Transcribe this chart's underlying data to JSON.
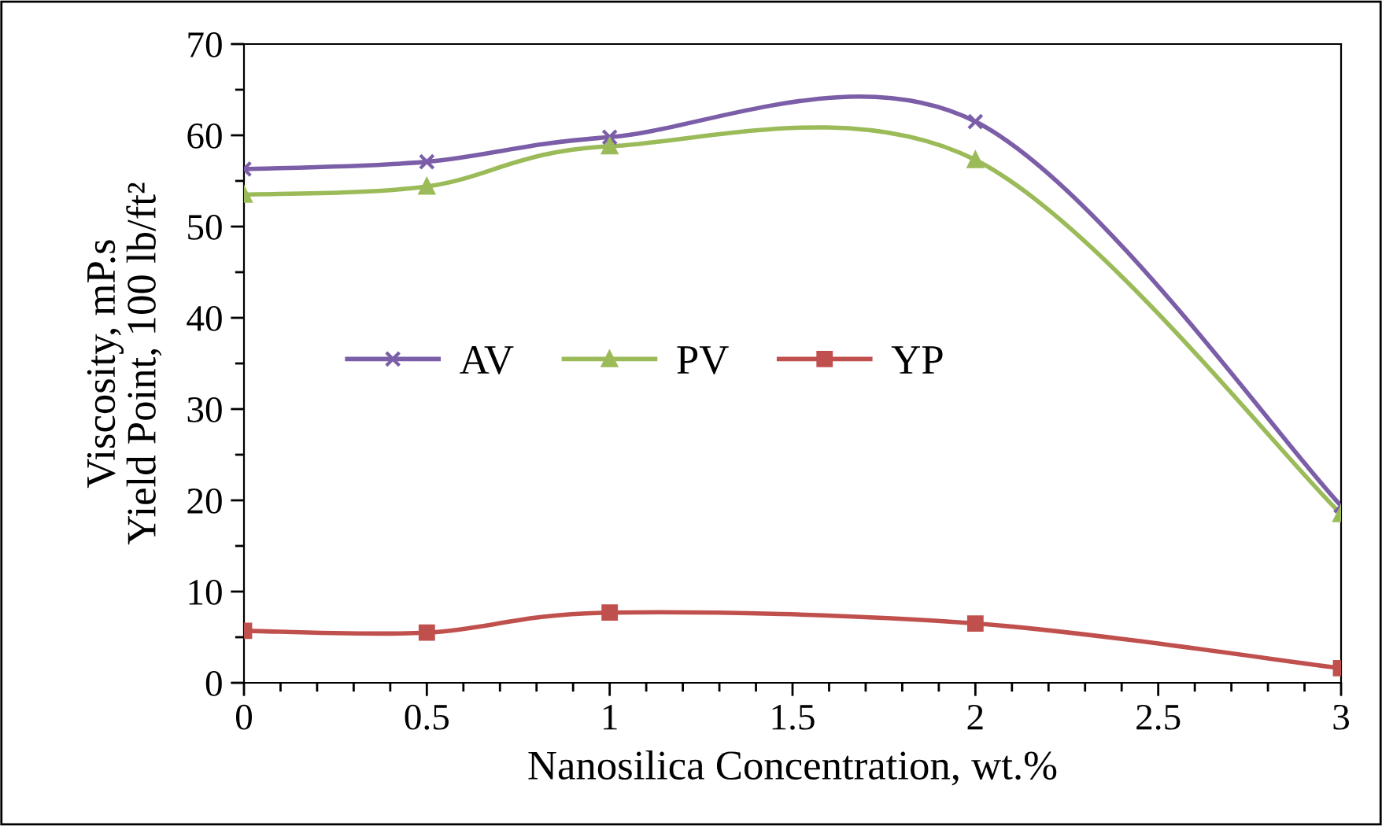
{
  "chart_data": {
    "type": "line",
    "xlabel": "Nanosilica Concentration, wt.%",
    "ylabel": "Viscosity, mP.s\nYield Point, 100 lb/ft²",
    "x": [
      0,
      0.5,
      1,
      2,
      3
    ],
    "xlim": [
      0,
      3
    ],
    "xticks": [
      0,
      0.5,
      1,
      1.5,
      2,
      2.5,
      3
    ],
    "ylim": [
      0,
      70
    ],
    "yticks": [
      0,
      10,
      20,
      30,
      40,
      50,
      60,
      70
    ],
    "grid": false,
    "legend": "center left",
    "series": [
      {
        "name": "AV",
        "color": "#7b5ea7",
        "marker": "cross",
        "values": [
          56.3,
          57.1,
          59.8,
          61.5,
          19.4
        ]
      },
      {
        "name": "PV",
        "color": "#9bbb59",
        "marker": "triangle",
        "values": [
          53.5,
          54.4,
          58.8,
          57.3,
          18.5
        ]
      },
      {
        "name": "YP",
        "color": "#c0504d",
        "marker": "square",
        "values": [
          5.7,
          5.5,
          7.7,
          6.5,
          1.6
        ]
      }
    ]
  }
}
